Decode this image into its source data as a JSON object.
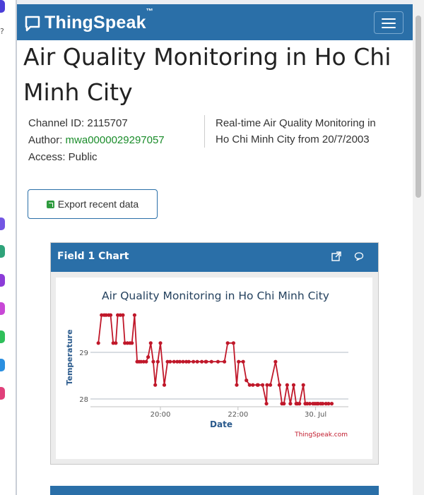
{
  "brand": {
    "name": "ThingSpeak",
    "trademark": "™"
  },
  "channel": {
    "title": "Air Quality Monitoring in Ho Chi Minh City",
    "id_label": "Channel ID: 2115707",
    "author_prefix": "Author: ",
    "author": "mwa0000029297057",
    "access": "Access: Public",
    "description": "Real-time Air Quality Monitoring in Ho Chi Minh City from 20/7/2003"
  },
  "export_button": "Export recent data",
  "panel": {
    "title": "Field 1 Chart"
  },
  "colors": {
    "header": "#2a6fa8",
    "series": "#c0182a",
    "author_link": "#1a8c2a"
  },
  "chart_data": {
    "type": "line",
    "title": "Air Quality Monitoring in Ho Chi Minh City",
    "xlabel": "Date",
    "ylabel": "Temperature",
    "x_tick_labels": [
      "20:00",
      "22:00",
      "30. Jul"
    ],
    "x_ticks_minutes": [
      0,
      120,
      240
    ],
    "y_ticks": [
      28,
      29
    ],
    "ylim": [
      27.9,
      29.9
    ],
    "credit": "ThingSpeak.com",
    "series": [
      {
        "x": [
          -96,
          -91,
          -87,
          -84,
          -80,
          -77,
          -73,
          -69,
          -66,
          -62,
          -58,
          -55,
          -51,
          -47,
          -44,
          -40,
          -36,
          -33,
          -30,
          -26,
          -22,
          -19,
          -15,
          -11,
          -8,
          -4,
          0,
          6,
          11,
          15,
          21,
          26,
          30,
          35,
          40,
          44,
          51,
          57,
          64,
          70,
          71,
          79,
          89,
          99,
          104,
          113,
          118,
          121,
          128,
          133,
          138,
          143,
          150,
          151,
          158,
          164,
          165,
          170,
          178,
          184,
          188,
          191,
          196,
          201,
          206,
          210,
          212,
          215,
          221,
          224,
          227,
          231,
          236,
          239,
          242,
          244,
          248,
          251,
          256,
          260,
          265
        ],
        "y": [
          29.2,
          29.8,
          29.8,
          29.8,
          29.8,
          29.8,
          29.2,
          29.2,
          29.8,
          29.8,
          29.8,
          29.2,
          29.2,
          29.2,
          29.2,
          29.8,
          28.8,
          28.8,
          28.8,
          28.8,
          28.8,
          28.9,
          29.2,
          28.8,
          28.3,
          28.8,
          29.2,
          28.3,
          28.8,
          28.8,
          28.8,
          28.8,
          28.8,
          28.8,
          28.8,
          28.8,
          28.8,
          28.8,
          28.8,
          28.8,
          28.8,
          28.8,
          28.8,
          28.8,
          29.2,
          29.2,
          28.3,
          28.8,
          28.8,
          28.4,
          28.3,
          28.3,
          28.3,
          28.3,
          28.3,
          27.9,
          28.3,
          28.3,
          28.8,
          28.3,
          27.9,
          27.9,
          28.3,
          27.9,
          28.3,
          27.9,
          27.9,
          27.9,
          28.3,
          27.9,
          27.9,
          27.9,
          27.9,
          27.9,
          27.9,
          27.9,
          27.9,
          27.9,
          27.9,
          27.9,
          27.9
        ]
      }
    ]
  }
}
